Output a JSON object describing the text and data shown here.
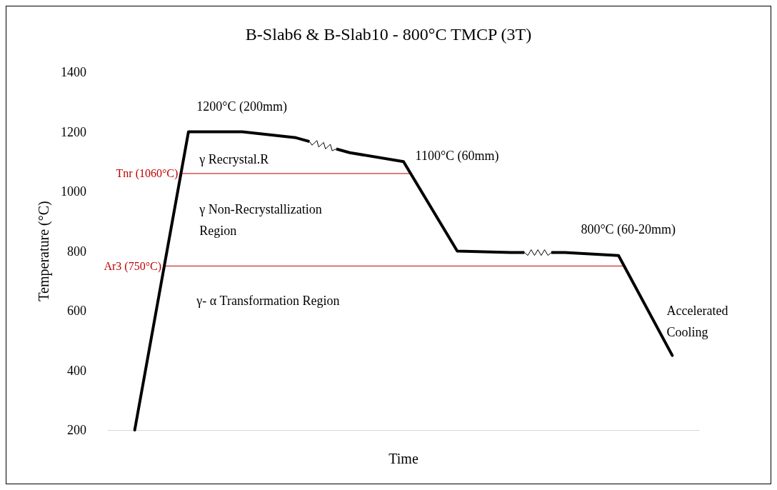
{
  "chart_data": {
    "type": "line",
    "title": "B-Slab6 & B-Slab10 - 800°C TMCP (3T)",
    "xlabel": "Time",
    "ylabel": "Temperature (°C)",
    "categories": [
      null,
      null,
      null,
      null,
      null,
      null,
      null,
      null,
      null,
      null,
      null
    ],
    "series": [
      {
        "color": "#000000",
        "values": [
          200,
          1200,
          1200,
          1180,
          1130,
          1100,
          800,
          795,
          795,
          785,
          450
        ]
      }
    ],
    "ylim": [
      200,
      1400
    ],
    "yticks": [
      200,
      400,
      600,
      800,
      1000,
      1200,
      1400
    ],
    "tick_labels": "y",
    "grid": false,
    "marker": "none",
    "line_style": "solid",
    "ref_lines": [
      {
        "axis": "y",
        "value": 1060,
        "label": "Tnr (1060°C)",
        "color": "#c00000"
      },
      {
        "axis": "y",
        "value": 750,
        "label": "Ar3 (750°C)",
        "color": "#c00000"
      }
    ],
    "annotations": [
      "1200°C (200mm)",
      "1100°C (60mm)",
      "800°C (60-20mm)",
      "γ Recrystal.R",
      "γ Non-Recrystallization\nRegion",
      "γ- α Transformation Region",
      "Accelerated\nCooling"
    ]
  }
}
